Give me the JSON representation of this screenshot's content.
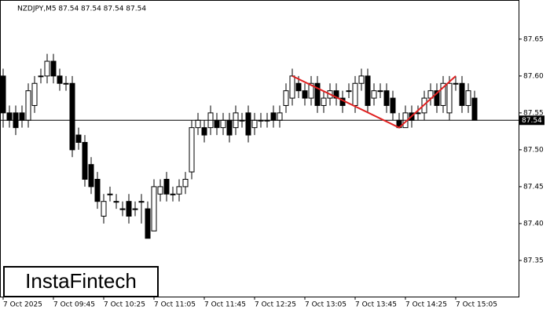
{
  "chart_data": {
    "type": "candlestick",
    "title": "NZDJPY,M5  87.54 87.54 87.54 87.54",
    "watermark": "InstaFintech",
    "categories": [
      "7 Oct 2025",
      null,
      null,
      null,
      null,
      null,
      null,
      null,
      "7 Oct 09:45",
      null,
      null,
      null,
      null,
      null,
      null,
      null,
      "7 Oct 10:25",
      null,
      null,
      null,
      null,
      null,
      null,
      null,
      "7 Oct 11:05",
      null,
      null,
      null,
      null,
      null,
      null,
      null,
      "7 Oct 11:45",
      null,
      null,
      null,
      null,
      null,
      null,
      null,
      "7 Oct 12:25",
      null,
      null,
      null,
      null,
      null,
      null,
      null,
      "7 Oct 13:05",
      null,
      null,
      null,
      null,
      null,
      null,
      null,
      "7 Oct 13:45",
      null,
      null,
      null,
      null,
      null,
      null,
      null,
      "7 Oct 14:25",
      null,
      null,
      null,
      null,
      null,
      null,
      null,
      "7 Oct 15:05",
      null,
      null,
      null
    ],
    "open": [
      87.6,
      87.55,
      87.55,
      87.55,
      87.54,
      87.56,
      87.6,
      87.6,
      87.62,
      87.6,
      87.59,
      87.59,
      87.52,
      87.51,
      87.48,
      87.46,
      87.41,
      87.44,
      87.43,
      87.42,
      87.43,
      87.42,
      87.43,
      87.42,
      87.39,
      87.44,
      87.46,
      87.44,
      87.44,
      87.45,
      87.47,
      87.53,
      87.53,
      87.53,
      87.54,
      87.53,
      87.54,
      87.53,
      87.54,
      87.55,
      87.53,
      87.54,
      87.54,
      87.55,
      87.54,
      87.56,
      87.57,
      87.59,
      87.58,
      87.57,
      87.59,
      87.56,
      87.57,
      87.58,
      87.57,
      87.58,
      87.56,
      87.59,
      87.6,
      87.57,
      87.58,
      87.58,
      87.57,
      87.54,
      87.53,
      87.55,
      87.55,
      87.55,
      87.57,
      87.58,
      87.56,
      87.55,
      87.59,
      87.59,
      87.56,
      87.57
    ],
    "high": [
      87.61,
      87.56,
      87.56,
      87.56,
      87.59,
      87.6,
      87.61,
      87.63,
      87.63,
      87.61,
      87.6,
      87.6,
      87.53,
      87.52,
      87.49,
      87.47,
      87.44,
      87.45,
      87.44,
      87.43,
      87.44,
      87.43,
      87.44,
      87.43,
      87.46,
      87.46,
      87.47,
      87.45,
      87.46,
      87.47,
      87.54,
      87.55,
      87.54,
      87.56,
      87.55,
      87.55,
      87.55,
      87.56,
      87.55,
      87.56,
      87.55,
      87.55,
      87.55,
      87.56,
      87.56,
      87.59,
      87.61,
      87.6,
      87.59,
      87.6,
      87.6,
      87.58,
      87.59,
      87.59,
      87.58,
      87.59,
      87.6,
      87.61,
      87.61,
      87.59,
      87.59,
      87.59,
      87.58,
      87.55,
      87.56,
      87.56,
      87.56,
      87.58,
      87.59,
      87.59,
      87.6,
      87.6,
      87.6,
      87.6,
      87.59,
      87.58
    ],
    "low": [
      87.53,
      87.53,
      87.52,
      87.53,
      87.53,
      87.55,
      87.59,
      87.59,
      87.59,
      87.58,
      87.58,
      87.49,
      87.5,
      87.45,
      87.44,
      87.42,
      87.4,
      87.43,
      87.42,
      87.41,
      87.4,
      87.41,
      87.4,
      87.38,
      87.39,
      87.43,
      87.43,
      87.43,
      87.43,
      87.44,
      87.46,
      87.52,
      87.51,
      87.52,
      87.52,
      87.52,
      87.51,
      87.52,
      87.53,
      87.51,
      87.52,
      87.53,
      87.53,
      87.53,
      87.53,
      87.55,
      87.56,
      87.57,
      87.56,
      87.56,
      87.55,
      87.55,
      87.56,
      87.56,
      87.55,
      87.57,
      87.55,
      87.58,
      87.55,
      87.56,
      87.57,
      87.55,
      87.54,
      87.53,
      87.53,
      87.53,
      87.54,
      87.54,
      87.56,
      87.55,
      87.55,
      87.54,
      87.58,
      87.55,
      87.55,
      87.54
    ],
    "close": [
      87.55,
      87.54,
      87.53,
      87.54,
      87.58,
      87.59,
      87.6,
      87.62,
      87.6,
      87.59,
      87.59,
      87.5,
      87.51,
      87.46,
      87.45,
      87.43,
      87.43,
      87.44,
      87.43,
      87.42,
      87.41,
      87.42,
      87.43,
      87.38,
      87.45,
      87.45,
      87.44,
      87.44,
      87.45,
      87.46,
      87.53,
      87.54,
      87.52,
      87.55,
      87.53,
      87.54,
      87.52,
      87.55,
      87.54,
      87.52,
      87.54,
      87.54,
      87.54,
      87.54,
      87.55,
      87.58,
      87.6,
      87.58,
      87.57,
      87.59,
      87.56,
      87.57,
      87.58,
      87.57,
      87.56,
      87.58,
      87.59,
      87.6,
      87.56,
      87.58,
      87.58,
      87.56,
      87.55,
      87.53,
      87.55,
      87.54,
      87.55,
      87.57,
      87.58,
      87.56,
      87.59,
      87.59,
      87.59,
      87.56,
      87.58,
      87.54
    ],
    "pattern": {
      "x": [
        46,
        63,
        72
      ],
      "values": [
        87.6,
        87.53,
        87.6
      ],
      "color": "#e02020"
    },
    "last_price": 87.54,
    "ylim": [
      87.301,
      87.703
    ],
    "yticks": [
      87.35,
      {
        "value": 87.4,
        "label": "87.40"
      },
      87.45,
      {
        "value": 87.5,
        "label": "87.50"
      },
      87.55,
      {
        "value": 87.6,
        "label": "87.60"
      },
      87.65
    ]
  }
}
